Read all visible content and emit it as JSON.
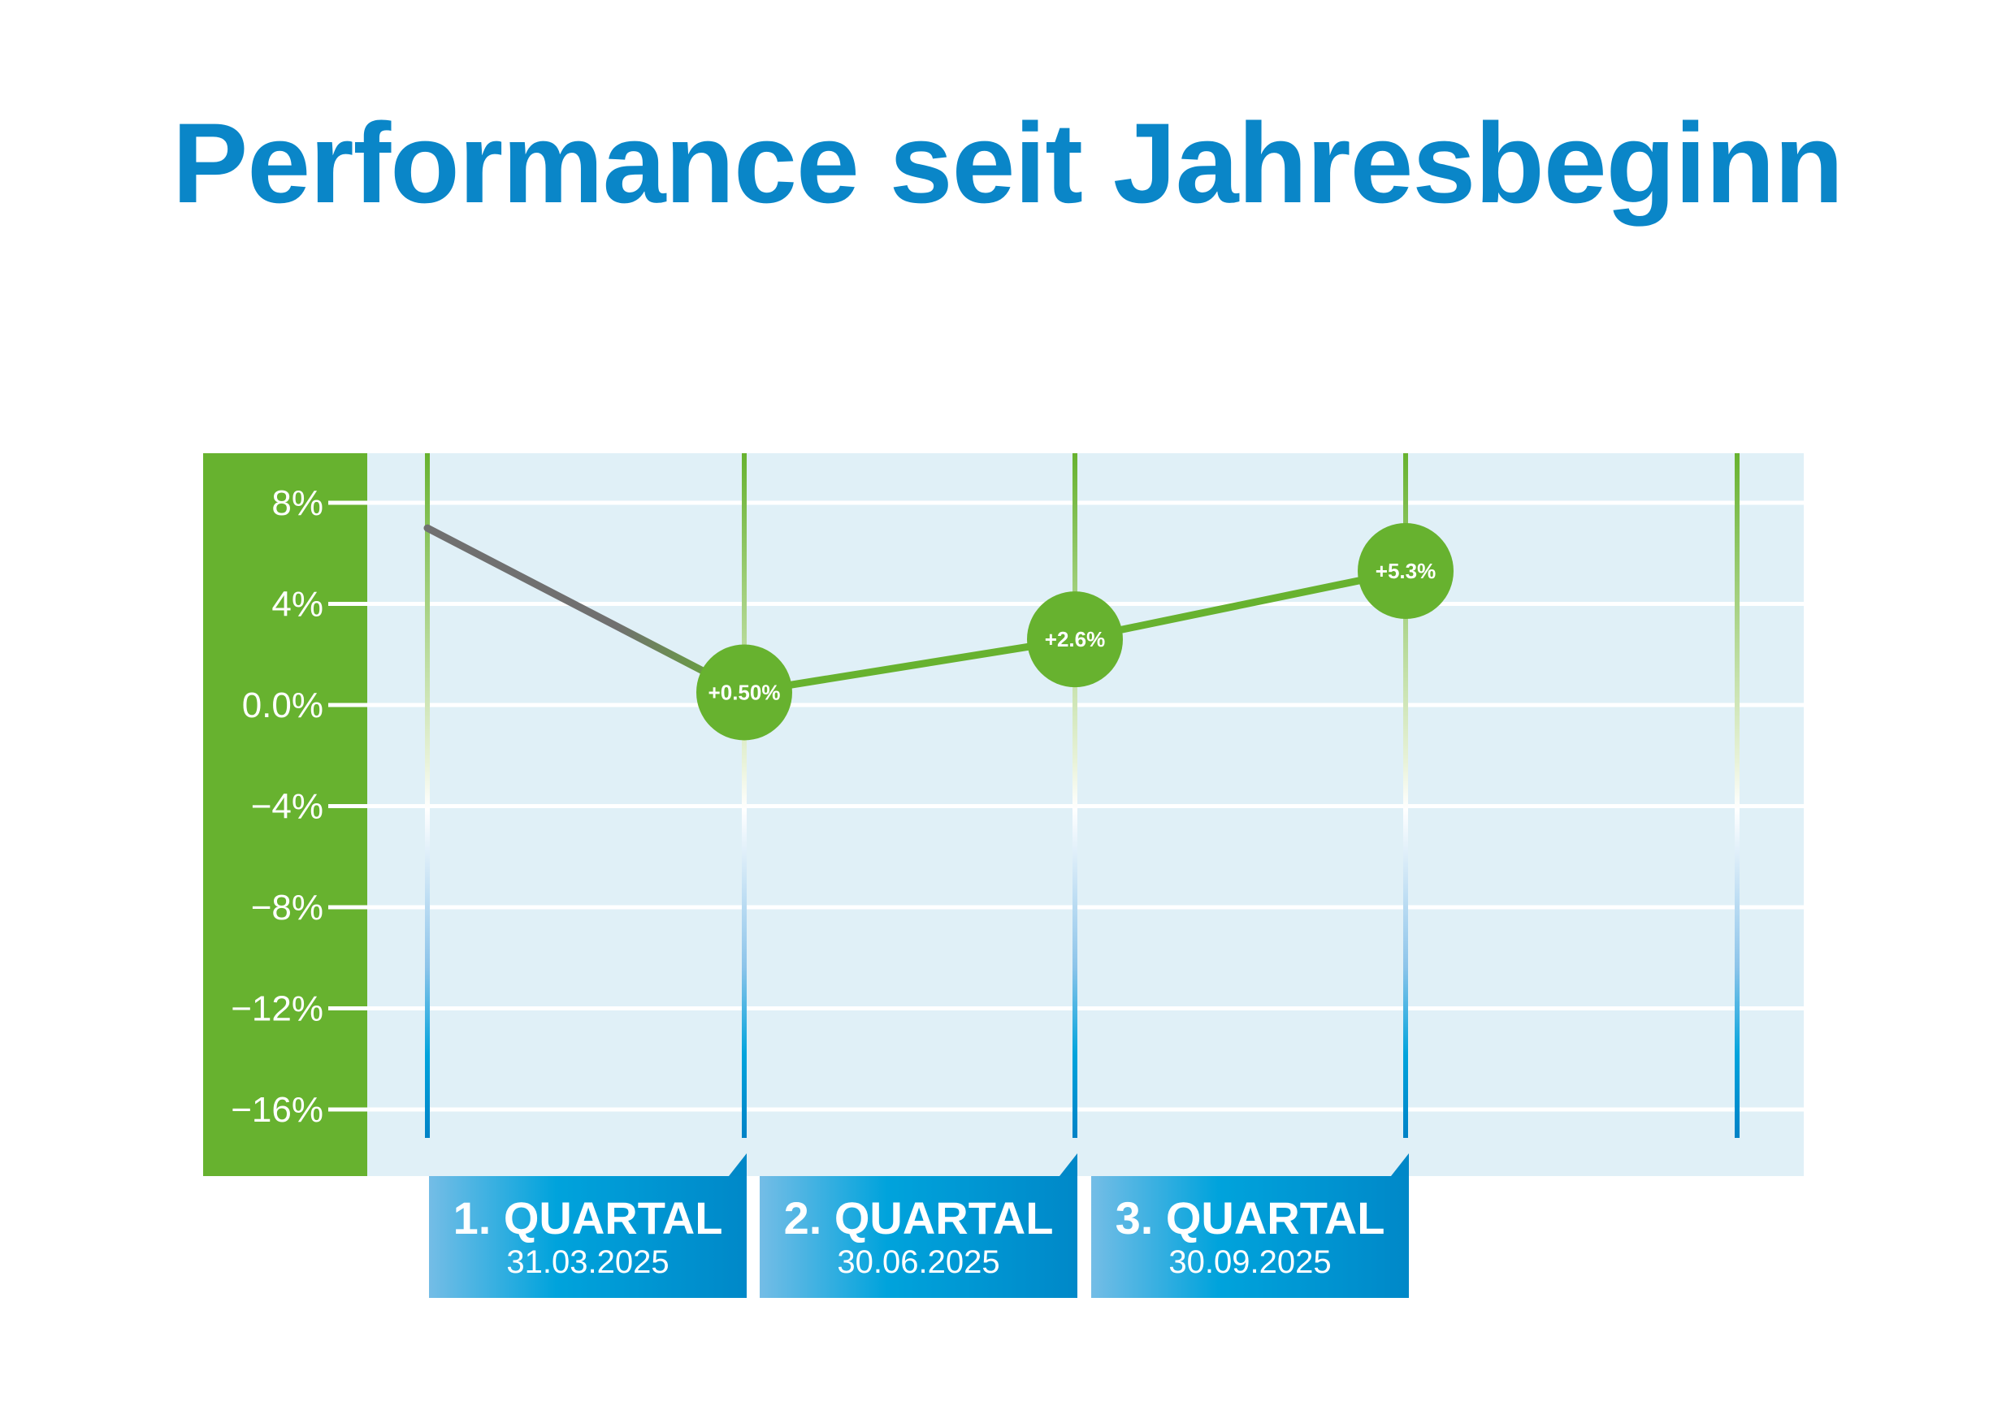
{
  "title": "Performance seit Jahresbeginn",
  "colors": {
    "title": "#0a86c8",
    "axis_panel": "#67b22f",
    "plot_bg": "#e0f0f7",
    "line": "#67b22f",
    "start_segment": "#707070",
    "marker": "#67b22f",
    "quarter_box": "#0088c8"
  },
  "chart_data": {
    "type": "line",
    "title": "Performance seit Jahresbeginn",
    "ylim": [
      -16,
      8
    ],
    "yticks": [
      8,
      4,
      0,
      -4,
      -8,
      -12,
      -16
    ],
    "ytick_labels": [
      "8%",
      "4%",
      "0.0%",
      "−4%",
      "−8%",
      "−12%",
      "−16%"
    ],
    "grid": true,
    "x_positions": 5,
    "points": [
      {
        "x": 0,
        "value": 7.0,
        "label": ""
      },
      {
        "x": 1,
        "value": 0.5,
        "label": "+0.50%"
      },
      {
        "x": 2,
        "value": 2.6,
        "label": "+2.6%"
      },
      {
        "x": 3,
        "value": 5.3,
        "label": "+5.3%"
      }
    ],
    "quarters": [
      {
        "label": "1. QUARTAL",
        "date": "31.03.2025"
      },
      {
        "label": "2. QUARTAL",
        "date": "30.06.2025"
      },
      {
        "label": "3. QUARTAL",
        "date": "30.09.2025"
      }
    ]
  }
}
